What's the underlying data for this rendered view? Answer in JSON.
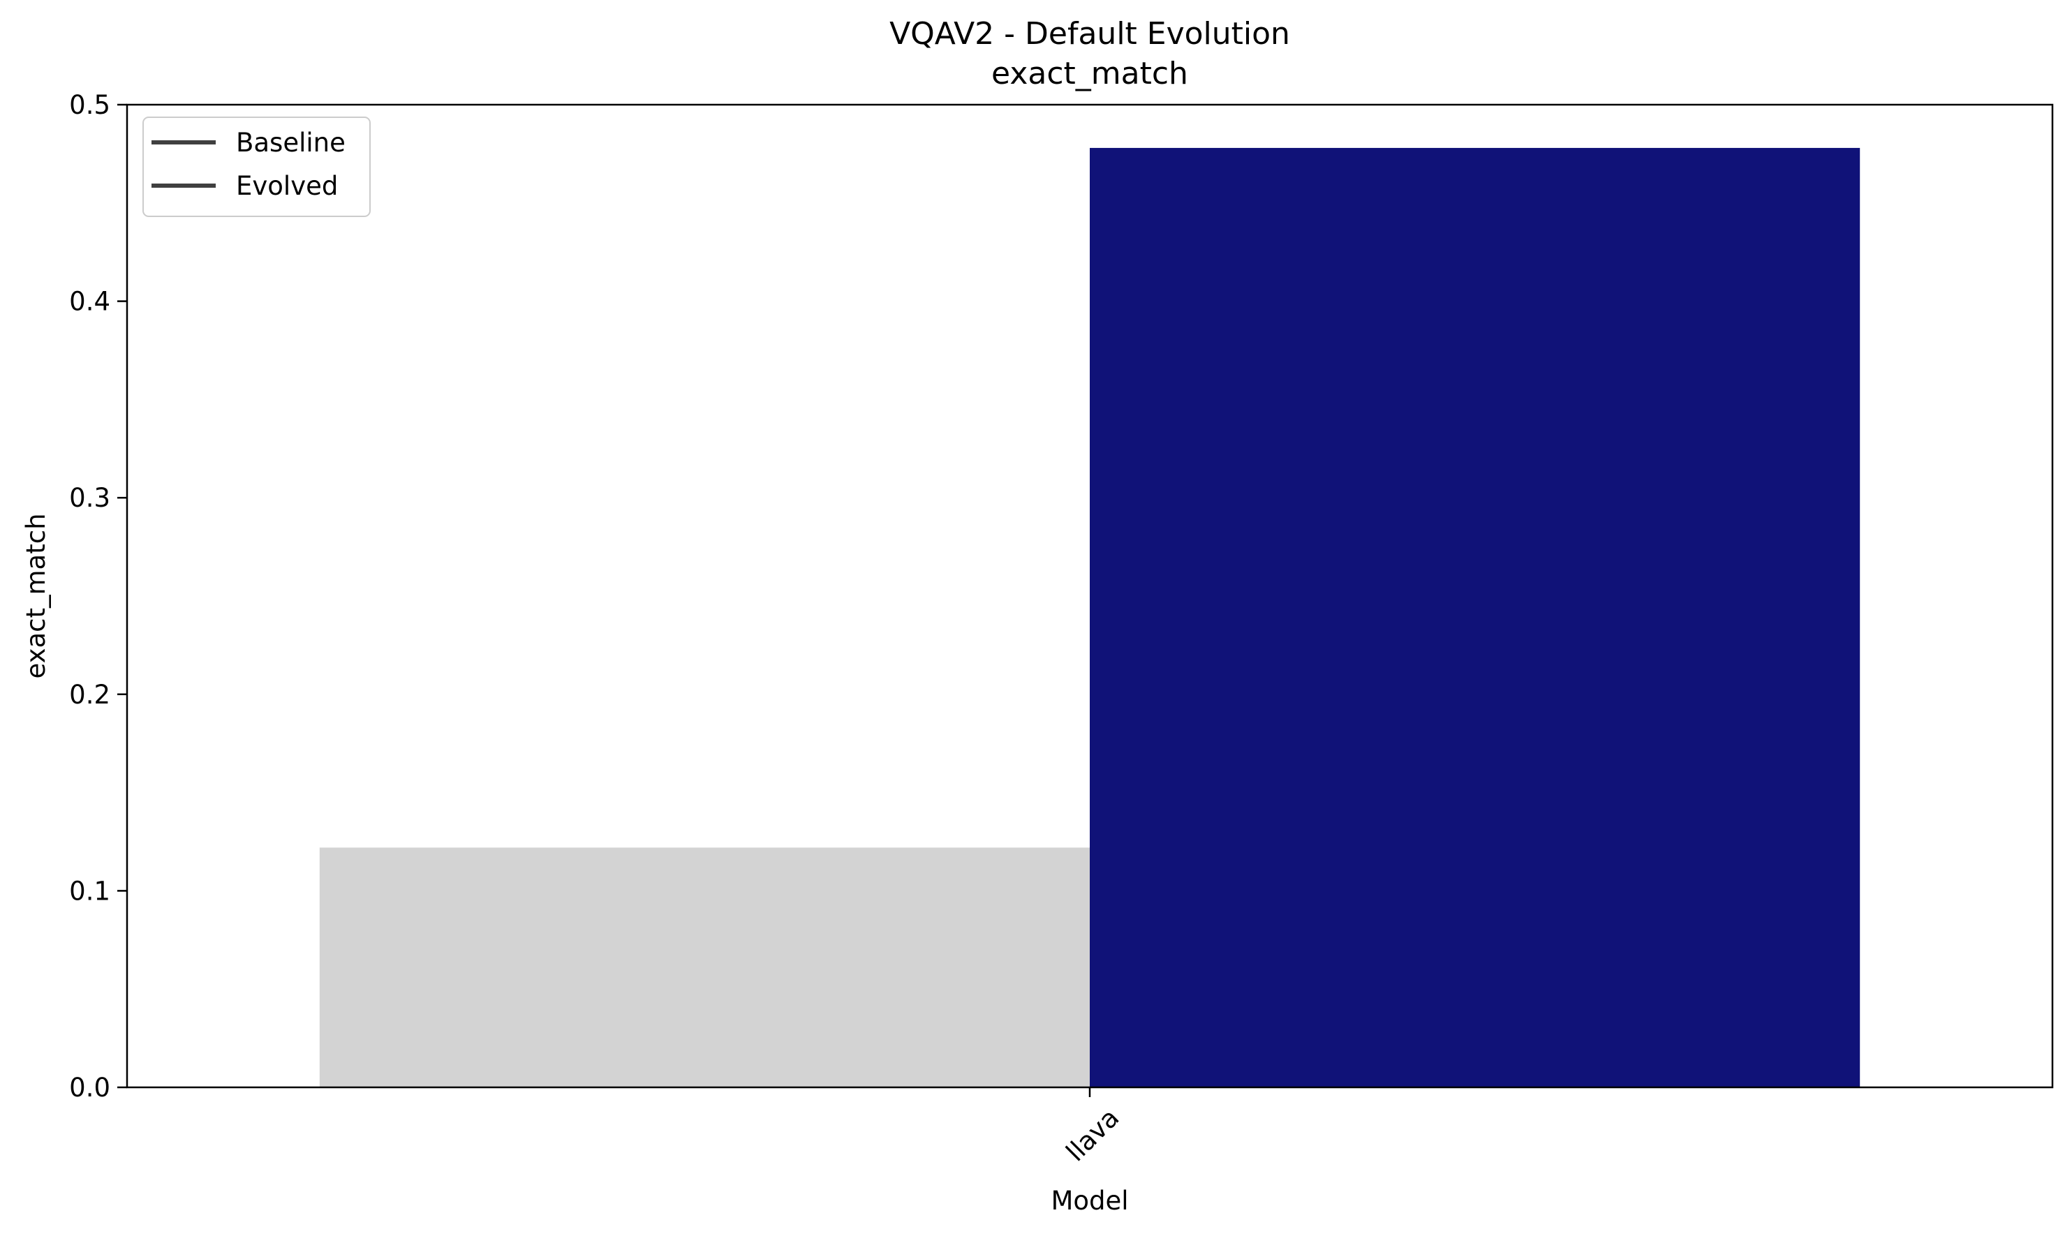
{
  "chart_data": {
    "type": "bar",
    "title": "VQAV2 - Default Evolution",
    "subtitle": "exact_match",
    "xlabel": "Model",
    "ylabel": "exact_match",
    "categories": [
      "llava"
    ],
    "ylim": [
      0,
      0.5
    ],
    "yticks": [
      0.0,
      0.1,
      0.2,
      0.3,
      0.4,
      0.5
    ],
    "ytick_labels": [
      "0.0",
      "0.1",
      "0.2",
      "0.3",
      "0.4",
      "0.5"
    ],
    "grid": false,
    "legend": {
      "placement": "upper-left",
      "entries": [
        {
          "label": "Baseline",
          "color": "#404040"
        },
        {
          "label": "Evolved",
          "color": "#404040"
        }
      ]
    },
    "series": [
      {
        "name": "Baseline",
        "color": "#d3d3d3",
        "values": [
          0.122
        ]
      },
      {
        "name": "Evolved",
        "color": "#101278",
        "values": [
          0.478
        ]
      }
    ]
  }
}
